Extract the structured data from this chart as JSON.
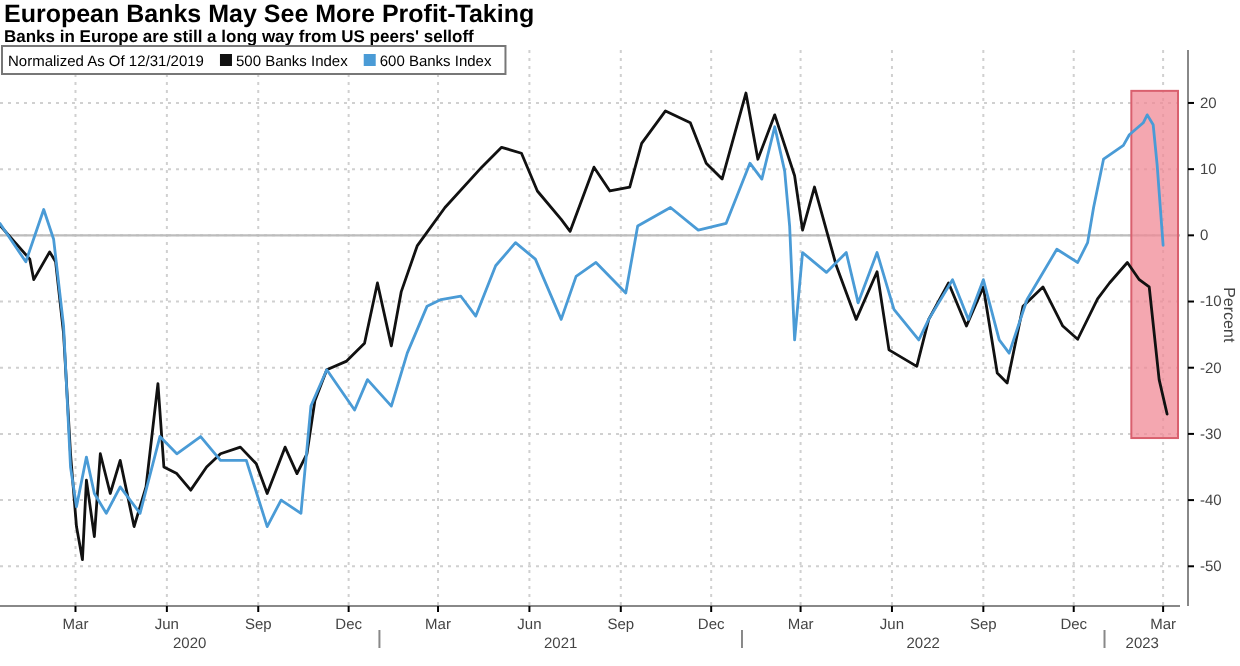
{
  "chart_data": {
    "type": "line",
    "title": "European Banks May See More Profit-Taking",
    "subtitle": "Banks in Europe are still a long way from US peers' selloff",
    "ylabel": "Percent",
    "legend_title": "Normalized As Of 12/31/2019",
    "legend": "top left",
    "grid": true,
    "xlim": [
      "2019-12-16",
      "2023-03-18"
    ],
    "ylim": [
      -56,
      28
    ],
    "yticks": [
      -50,
      -40,
      -30,
      -20,
      -10,
      0,
      10,
      20
    ],
    "xticks": [
      {
        "value": "2020-03",
        "label": "Mar"
      },
      {
        "value": "2020-06",
        "label": "Jun"
      },
      {
        "value": "2020-09",
        "label": "Sep"
      },
      {
        "value": "2020-12",
        "label": "Dec"
      },
      {
        "value": "2021-03",
        "label": "Mar"
      },
      {
        "value": "2021-06",
        "label": "Jun"
      },
      {
        "value": "2021-09",
        "label": "Sep"
      },
      {
        "value": "2021-12",
        "label": "Dec"
      },
      {
        "value": "2022-03",
        "label": "Mar"
      },
      {
        "value": "2022-06",
        "label": "Jun"
      },
      {
        "value": "2022-09",
        "label": "Sep"
      },
      {
        "value": "2022-12",
        "label": "Dec"
      },
      {
        "value": "2023-03",
        "label": "Mar"
      },
      {
        "value": "2021-01-01",
        "label": null
      },
      {
        "value": "2022-01-01",
        "label": null
      },
      {
        "value": "2023-01-01",
        "label": null
      }
    ],
    "annotations": [
      "2020",
      "2021",
      "2022",
      "2023"
    ],
    "ref_lines": [
      {
        "axis": "y",
        "value": 0,
        "color": "#bdbdbd"
      }
    ],
    "bands": [
      {
        "axis": "x",
        "from": "2023-01-28",
        "to": "2023-03-16",
        "color": "#f08a96"
      }
    ],
    "series": [
      {
        "name": "500 Banks Index",
        "color": "#111111",
        "x": [
          "2019-12-16",
          "2020-01-15",
          "2020-01-19",
          "2020-02-04",
          "2020-02-10",
          "2020-02-18",
          "2020-02-25",
          "2020-03-02",
          "2020-03-08",
          "2020-03-12",
          "2020-03-20",
          "2020-03-26",
          "2020-04-05",
          "2020-04-15",
          "2020-04-29",
          "2020-05-11",
          "2020-05-23",
          "2020-05-29",
          "2020-06-11",
          "2020-06-25",
          "2020-07-11",
          "2020-07-25",
          "2020-08-14",
          "2020-08-30",
          "2020-09-10",
          "2020-09-28",
          "2020-10-10",
          "2020-10-20",
          "2020-10-28",
          "2020-11-09",
          "2020-11-29",
          "2020-12-17",
          "2020-12-30",
          "2021-01-13",
          "2021-01-23",
          "2021-02-08",
          "2021-03-08",
          "2021-04-14",
          "2021-05-04",
          "2021-05-24",
          "2021-06-09",
          "2021-07-03",
          "2021-07-12",
          "2021-08-05",
          "2021-08-21",
          "2021-09-10",
          "2021-09-22",
          "2021-10-16",
          "2021-11-10",
          "2021-11-26",
          "2021-12-12",
          "2022-01-05",
          "2022-01-17",
          "2022-02-03",
          "2022-02-23",
          "2022-03-03",
          "2022-03-15",
          "2022-03-27",
          "2022-04-06",
          "2022-04-26",
          "2022-05-17",
          "2022-05-29",
          "2022-06-26",
          "2022-07-08",
          "2022-07-28",
          "2022-08-15",
          "2022-09-01",
          "2022-09-15",
          "2022-09-25",
          "2022-10-11",
          "2022-10-31",
          "2022-11-20",
          "2022-12-05",
          "2022-12-25",
          "2023-01-06",
          "2023-01-24",
          "2023-02-05",
          "2023-02-15",
          "2023-02-25",
          "2023-03-05"
        ],
        "values": [
          1.5,
          -3.6,
          -6.7,
          -2.5,
          -4,
          -14.8,
          -33,
          -44,
          -49,
          -37,
          -45.5,
          -33,
          -39,
          -34,
          -44,
          -38,
          -22.4,
          -35,
          -36,
          -38.5,
          -35,
          -33,
          -32,
          -34.5,
          -39,
          -32,
          -36,
          -33,
          -25,
          -20.3,
          -19,
          -16.3,
          -7.2,
          -16.7,
          -8.5,
          -1.6,
          4.2,
          10.3,
          13.3,
          12.4,
          6.7,
          2.4,
          0.6,
          10.3,
          6.7,
          7.3,
          13.9,
          18.8,
          17,
          10.9,
          8.5,
          21.5,
          11.5,
          18.2,
          9,
          0.8,
          7.3,
          0.8,
          -4.6,
          -12.7,
          -5.5,
          -17.3,
          -19.8,
          -12.7,
          -7.2,
          -13.7,
          -7.8,
          -20.8,
          -22.3,
          -10.7,
          -7.8,
          -13.7,
          -15.7,
          -9.6,
          -7.2,
          -4.1,
          -6.7,
          -7.8,
          -21.8,
          -27
        ]
      },
      {
        "name": "600 Banks Index",
        "color": "#4a9bd6",
        "x": [
          "2019-12-16",
          "2020-01-11",
          "2020-01-29",
          "2020-02-08",
          "2020-02-18",
          "2020-02-25",
          "2020-03-02",
          "2020-03-12",
          "2020-03-20",
          "2020-04-01",
          "2020-04-15",
          "2020-05-05",
          "2020-05-25",
          "2020-06-11",
          "2020-07-05",
          "2020-07-25",
          "2020-08-20",
          "2020-09-10",
          "2020-09-24",
          "2020-10-14",
          "2020-10-24",
          "2020-11-09",
          "2020-12-07",
          "2020-12-20",
          "2021-01-13",
          "2021-01-29",
          "2021-02-18",
          "2021-03-04",
          "2021-03-24",
          "2021-04-08",
          "2021-04-28",
          "2021-05-18",
          "2021-06-07",
          "2021-07-03",
          "2021-07-18",
          "2021-08-07",
          "2021-09-06",
          "2021-09-18",
          "2021-10-21",
          "2021-11-18",
          "2021-12-16",
          "2022-01-09",
          "2022-01-21",
          "2022-02-03",
          "2022-02-13",
          "2022-02-18",
          "2022-02-23",
          "2022-03-03",
          "2022-03-27",
          "2022-04-16",
          "2022-04-28",
          "2022-05-17",
          "2022-06-03",
          "2022-06-28",
          "2022-07-08",
          "2022-08-01",
          "2022-08-17",
          "2022-09-01",
          "2022-09-17",
          "2022-09-27",
          "2022-10-15",
          "2022-11-14",
          "2022-12-05",
          "2022-12-15",
          "2022-12-21",
          "2022-12-31",
          "2023-01-20",
          "2023-01-26",
          "2023-02-09",
          "2023-02-13",
          "2023-02-19",
          "2023-02-23",
          "2023-03-01"
        ],
        "values": [
          1.8,
          -4,
          3.9,
          -0.6,
          -13.7,
          -35,
          -41,
          -33.5,
          -39,
          -42,
          -38,
          -42,
          -30.4,
          -33,
          -30.4,
          -34,
          -34,
          -44,
          -40,
          -42,
          -25.8,
          -20.3,
          -26.4,
          -21.8,
          -25.8,
          -17.8,
          -10.7,
          -9.7,
          -9.2,
          -12.2,
          -4.6,
          -1.1,
          -3.6,
          -12.7,
          -6.2,
          -4.1,
          -8.7,
          1.4,
          4.2,
          0.8,
          1.8,
          10.9,
          8.5,
          16.4,
          9.7,
          1.4,
          -15.8,
          -2.6,
          -5.6,
          -2.6,
          -10.2,
          -2.6,
          -11.2,
          -15.8,
          -12.7,
          -6.7,
          -12.7,
          -6.7,
          -15.8,
          -17.8,
          -9.7,
          -2.1,
          -4.1,
          -1.1,
          4.2,
          11.5,
          13.6,
          15.2,
          17,
          18.2,
          16.7,
          10.6,
          -1.5
        ]
      }
    ]
  }
}
